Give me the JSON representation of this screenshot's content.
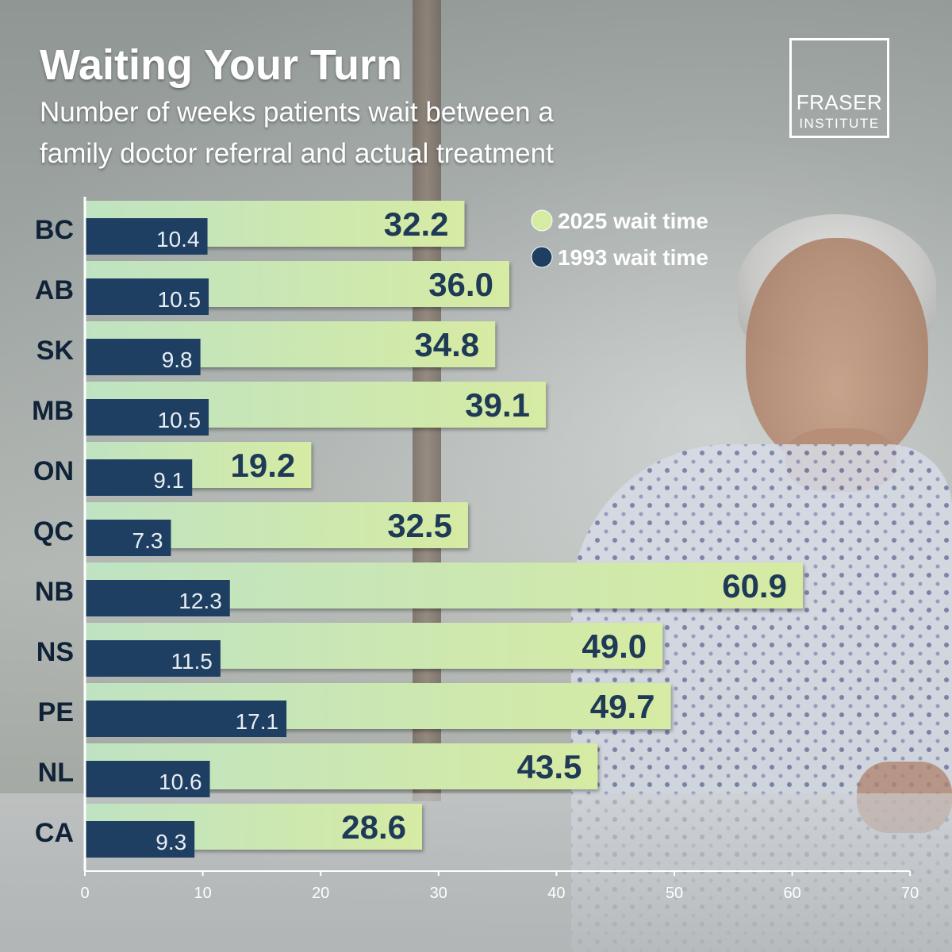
{
  "title": "Waiting Your Turn",
  "subtitle_lines": [
    "Number of weeks patients wait between a",
    "family doctor referral and actual treatment"
  ],
  "logo": {
    "line1": "FRASER",
    "line2": "INSTITUTE"
  },
  "colors": {
    "bar_2025": "#d6eba3",
    "bar_1993": "#1f3f62",
    "value_2025_text": "#1e3a56",
    "value_1993_text": "#e8eef4",
    "axis": "#ffffff"
  },
  "chart_data": {
    "type": "bar",
    "orientation": "horizontal",
    "categories": [
      "BC",
      "AB",
      "SK",
      "MB",
      "ON",
      "QC",
      "NB",
      "NS",
      "PE",
      "NL",
      "CA"
    ],
    "series": [
      {
        "name": "2025 wait time",
        "color": "#d6eba3",
        "values": [
          32.2,
          36.0,
          34.8,
          39.1,
          19.2,
          32.5,
          60.9,
          49.0,
          49.7,
          43.5,
          28.6
        ]
      },
      {
        "name": "1993 wait time",
        "color": "#1f3f62",
        "values": [
          10.4,
          10.5,
          9.8,
          10.5,
          9.1,
          7.3,
          12.3,
          11.5,
          17.1,
          10.6,
          9.3
        ]
      }
    ],
    "value_labels": {
      "2025 wait time": [
        "32.2",
        "36.0",
        "34.8",
        "39.1",
        "19.2",
        "32.5",
        "60.9",
        "49.0",
        "49.7",
        "43.5",
        "28.6"
      ],
      "1993 wait time": [
        "10.4",
        "10.5",
        "9.8",
        "10.5",
        "9.1",
        "7.3",
        "12.3",
        "11.5",
        "17.1",
        "10.6",
        "9.3"
      ]
    },
    "x_ticks": [
      "0",
      "10",
      "20",
      "30",
      "40",
      "50",
      "60",
      "70"
    ],
    "xlim": [
      0,
      70
    ],
    "xlabel": "",
    "ylabel": "",
    "grid": false,
    "legend_position": "top-right"
  }
}
